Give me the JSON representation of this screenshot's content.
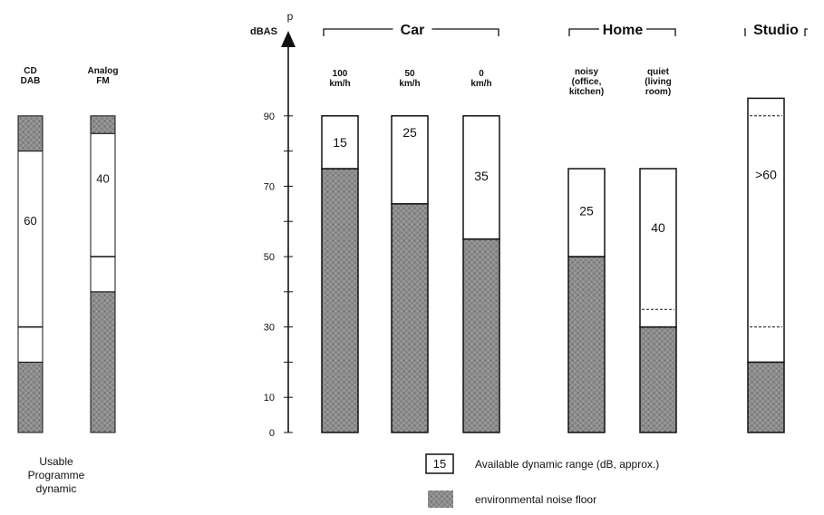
{
  "chart_data": {
    "type": "bar",
    "y_axis": {
      "label": "dBAS",
      "symbol": "p",
      "ticks": [
        0,
        10,
        30,
        50,
        70,
        90
      ],
      "ylim": [
        0,
        100
      ]
    },
    "groups": [
      {
        "title": "Car"
      },
      {
        "title": "Home"
      },
      {
        "title": "Studio"
      }
    ],
    "left_bars": [
      {
        "label": "CD\nDAB",
        "noise_floor": 20,
        "low_marker": 30,
        "top": 90,
        "top_band": 80,
        "range_label": "60"
      },
      {
        "label": "Analog\nFM",
        "noise_floor": 40,
        "low_marker": 50,
        "top": 90,
        "top_band": 85,
        "range_label": "40"
      }
    ],
    "left_caption": "Usable\nProgramme\ndynamic",
    "bars": [
      {
        "label": "100\nkm/h",
        "group": "Car",
        "noise_floor": 75,
        "top": 90,
        "range": "15"
      },
      {
        "label": "50\nkm/h",
        "group": "Car",
        "noise_floor": 65,
        "top": 90,
        "range": "25"
      },
      {
        "label": "0\nkm/h",
        "group": "Car",
        "noise_floor": 55,
        "top": 90,
        "range": "35"
      },
      {
        "label": "noisy\n(office,\nkitchen)",
        "group": "Home",
        "noise_floor": 50,
        "top": 75,
        "range": "25"
      },
      {
        "label": "quiet\n(living\nroom)",
        "group": "Home",
        "noise_floor": 30,
        "top": 75,
        "range": "40",
        "dashed_at": 35
      },
      {
        "label": "",
        "group": "Studio",
        "noise_floor": 20,
        "top": 95,
        "range": ">60",
        "dashed_at": [
          30,
          90
        ]
      }
    ],
    "legend": [
      {
        "swatch_text": "15",
        "text": "Available dynamic range (dB, approx.)"
      },
      {
        "swatch": "noise",
        "text": "environmental noise floor"
      }
    ],
    "colors": {
      "noise": "#8a8a8a",
      "range_fill": "#ffffff",
      "stroke": "#111111"
    }
  }
}
